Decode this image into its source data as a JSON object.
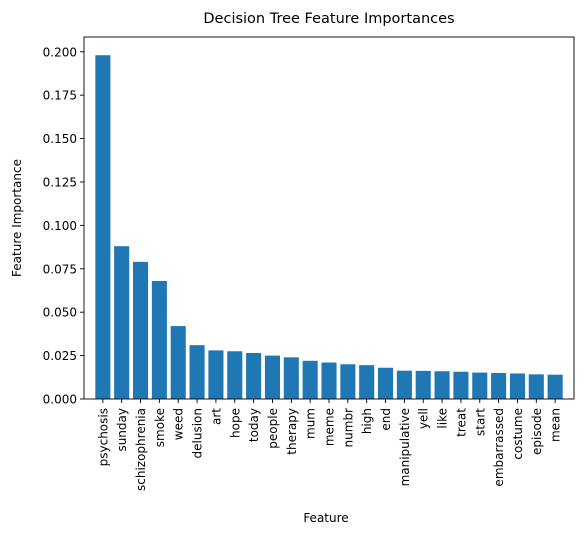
{
  "chart_data": {
    "type": "bar",
    "title": "Decision Tree Feature Importances",
    "xlabel": "Feature",
    "ylabel": "Feature Importance",
    "ylim": [
      0,
      0.2085
    ],
    "yticks": [
      "0.000",
      "0.025",
      "0.050",
      "0.075",
      "0.100",
      "0.125",
      "0.150",
      "0.175",
      "0.200"
    ],
    "grid": false,
    "bar_color": "#1f77b4",
    "categories": [
      "psychosis",
      "sunday",
      "schizophrenia",
      "smoke",
      "weed",
      "delusion",
      "art",
      "hope",
      "today",
      "people",
      "therapy",
      "mum",
      "meme",
      "numbr",
      "high",
      "end",
      "manipulative",
      "yell",
      "like",
      "treat",
      "start",
      "embarrassed",
      "costume",
      "episode",
      "mean"
    ],
    "values": [
      0.198,
      0.088,
      0.079,
      0.068,
      0.042,
      0.031,
      0.028,
      0.0275,
      0.0265,
      0.025,
      0.024,
      0.022,
      0.021,
      0.02,
      0.0195,
      0.018,
      0.0163,
      0.0162,
      0.016,
      0.0157,
      0.0152,
      0.015,
      0.0147,
      0.0142,
      0.014
    ]
  }
}
